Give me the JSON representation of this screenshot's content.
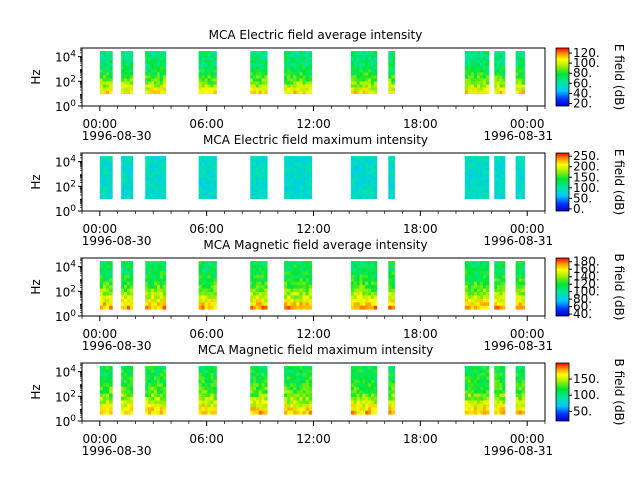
{
  "figure": {
    "type": "spectrogram-panels",
    "x_tick_labels": [
      "00:00",
      "06:00",
      "12:00",
      "18:00",
      "00:00"
    ],
    "x_tick_hours": [
      0,
      6,
      12,
      18,
      24
    ],
    "date_start": "1996-08-30",
    "date_end": "1996-08-31"
  },
  "chart_data": [
    {
      "type": "heatmap",
      "title": "MCA  Electric field average intensity",
      "ylabel": "Hz",
      "y_ticks": [
        "10",
        "10",
        "10"
      ],
      "y_exps": [
        "0",
        "2",
        "4"
      ],
      "y_scale": "log",
      "ylim": [
        1,
        50000
      ],
      "colorbar_label": "E field (dB)",
      "colorbar_ticks": [
        "20.",
        "40.",
        "60.",
        "80.",
        "100.",
        "120."
      ],
      "colorbar_values": [
        20,
        40,
        60,
        80,
        100,
        120
      ],
      "colorbar_range": [
        15,
        130
      ],
      "base_level": 0.45,
      "low_boost": 0.35,
      "fmin_exp": 1.0,
      "data_segments_hours": [
        [
          0.0,
          0.7
        ],
        [
          1.2,
          1.85
        ],
        [
          2.55,
          3.7
        ],
        [
          5.55,
          6.55
        ],
        [
          8.45,
          9.4
        ],
        [
          10.35,
          11.9
        ],
        [
          14.1,
          15.55
        ],
        [
          16.2,
          16.55
        ],
        [
          20.5,
          21.85
        ],
        [
          22.15,
          22.75
        ],
        [
          23.35,
          23.85
        ]
      ]
    },
    {
      "type": "heatmap",
      "title": "MCA  Electric field maximum intensity",
      "ylabel": "Hz",
      "y_ticks": [
        "10",
        "10",
        "10"
      ],
      "y_exps": [
        "0",
        "2",
        "4"
      ],
      "y_scale": "log",
      "ylim": [
        1,
        50000
      ],
      "colorbar_label": "E field (dB)",
      "colorbar_ticks": [
        "0.",
        "50.",
        "100.",
        "150.",
        "200.",
        "250."
      ],
      "colorbar_values": [
        0,
        50,
        100,
        150,
        200,
        250
      ],
      "colorbar_range": [
        -10,
        265
      ],
      "base_level": 0.5,
      "low_boost": 0.0,
      "fmin_exp": 1.0,
      "data_segments_hours": [
        [
          0.0,
          0.7
        ],
        [
          1.2,
          1.85
        ],
        [
          2.55,
          3.7
        ],
        [
          5.55,
          6.55
        ],
        [
          8.45,
          9.4
        ],
        [
          10.35,
          11.9
        ],
        [
          14.1,
          15.55
        ],
        [
          16.2,
          16.55
        ],
        [
          20.5,
          21.85
        ],
        [
          22.15,
          22.75
        ],
        [
          23.35,
          23.85
        ]
      ]
    },
    {
      "type": "heatmap",
      "title": "MCA  Magnetic field average intensity",
      "ylabel": "Hz",
      "y_ticks": [
        "10",
        "10",
        "10"
      ],
      "y_exps": [
        "0",
        "2",
        "4"
      ],
      "y_scale": "log",
      "ylim": [
        1,
        50000
      ],
      "colorbar_label": "B field (dB)",
      "colorbar_ticks": [
        "40.",
        "60.",
        "80.",
        "100.",
        "120.",
        "140.",
        "160.",
        "180."
      ],
      "colorbar_values": [
        40,
        60,
        80,
        100,
        120,
        140,
        160,
        180
      ],
      "colorbar_range": [
        35,
        190
      ],
      "base_level": 0.5,
      "low_boost": 0.38,
      "fmin_exp": 0.55,
      "data_segments_hours": [
        [
          0.0,
          0.7
        ],
        [
          1.2,
          1.85
        ],
        [
          2.55,
          3.7
        ],
        [
          5.55,
          6.55
        ],
        [
          8.45,
          9.4
        ],
        [
          10.35,
          11.9
        ],
        [
          14.1,
          15.55
        ],
        [
          16.2,
          16.55
        ],
        [
          20.5,
          21.85
        ],
        [
          22.15,
          22.75
        ],
        [
          23.35,
          23.85
        ]
      ]
    },
    {
      "type": "heatmap",
      "title": "MCA  Magnetic field maximum intensity",
      "ylabel": "Hz",
      "y_ticks": [
        "10",
        "10",
        "10"
      ],
      "y_exps": [
        "0",
        "2",
        "4"
      ],
      "y_scale": "log",
      "ylim": [
        1,
        50000
      ],
      "colorbar_label": "B field (dB)",
      "colorbar_ticks": [
        "50.",
        "100.",
        "150."
      ],
      "colorbar_values": [
        50,
        100,
        150
      ],
      "colorbar_range": [
        20,
        200
      ],
      "base_level": 0.52,
      "low_boost": 0.33,
      "fmin_exp": 0.55,
      "data_segments_hours": [
        [
          0.0,
          0.7
        ],
        [
          1.2,
          1.85
        ],
        [
          2.55,
          3.7
        ],
        [
          5.55,
          6.55
        ],
        [
          8.45,
          9.4
        ],
        [
          10.35,
          11.9
        ],
        [
          14.1,
          15.55
        ],
        [
          16.2,
          16.55
        ],
        [
          20.5,
          21.85
        ],
        [
          22.15,
          22.75
        ],
        [
          23.35,
          23.85
        ]
      ]
    }
  ]
}
